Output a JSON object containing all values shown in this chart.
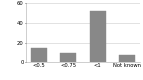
{
  "categories": [
    "<0.5",
    "<0.75",
    "<1",
    "Not known"
  ],
  "values": [
    15,
    10,
    52,
    7
  ],
  "bar_color": "#888888",
  "ylim": [
    0,
    60
  ],
  "yticks": [
    0,
    20,
    40,
    60
  ],
  "tick_fontsize": 3.8,
  "bar_width": 0.55,
  "background_color": "#ffffff",
  "grid_color": "#cccccc",
  "figsize": [
    1.43,
    0.8
  ],
  "dpi": 100
}
